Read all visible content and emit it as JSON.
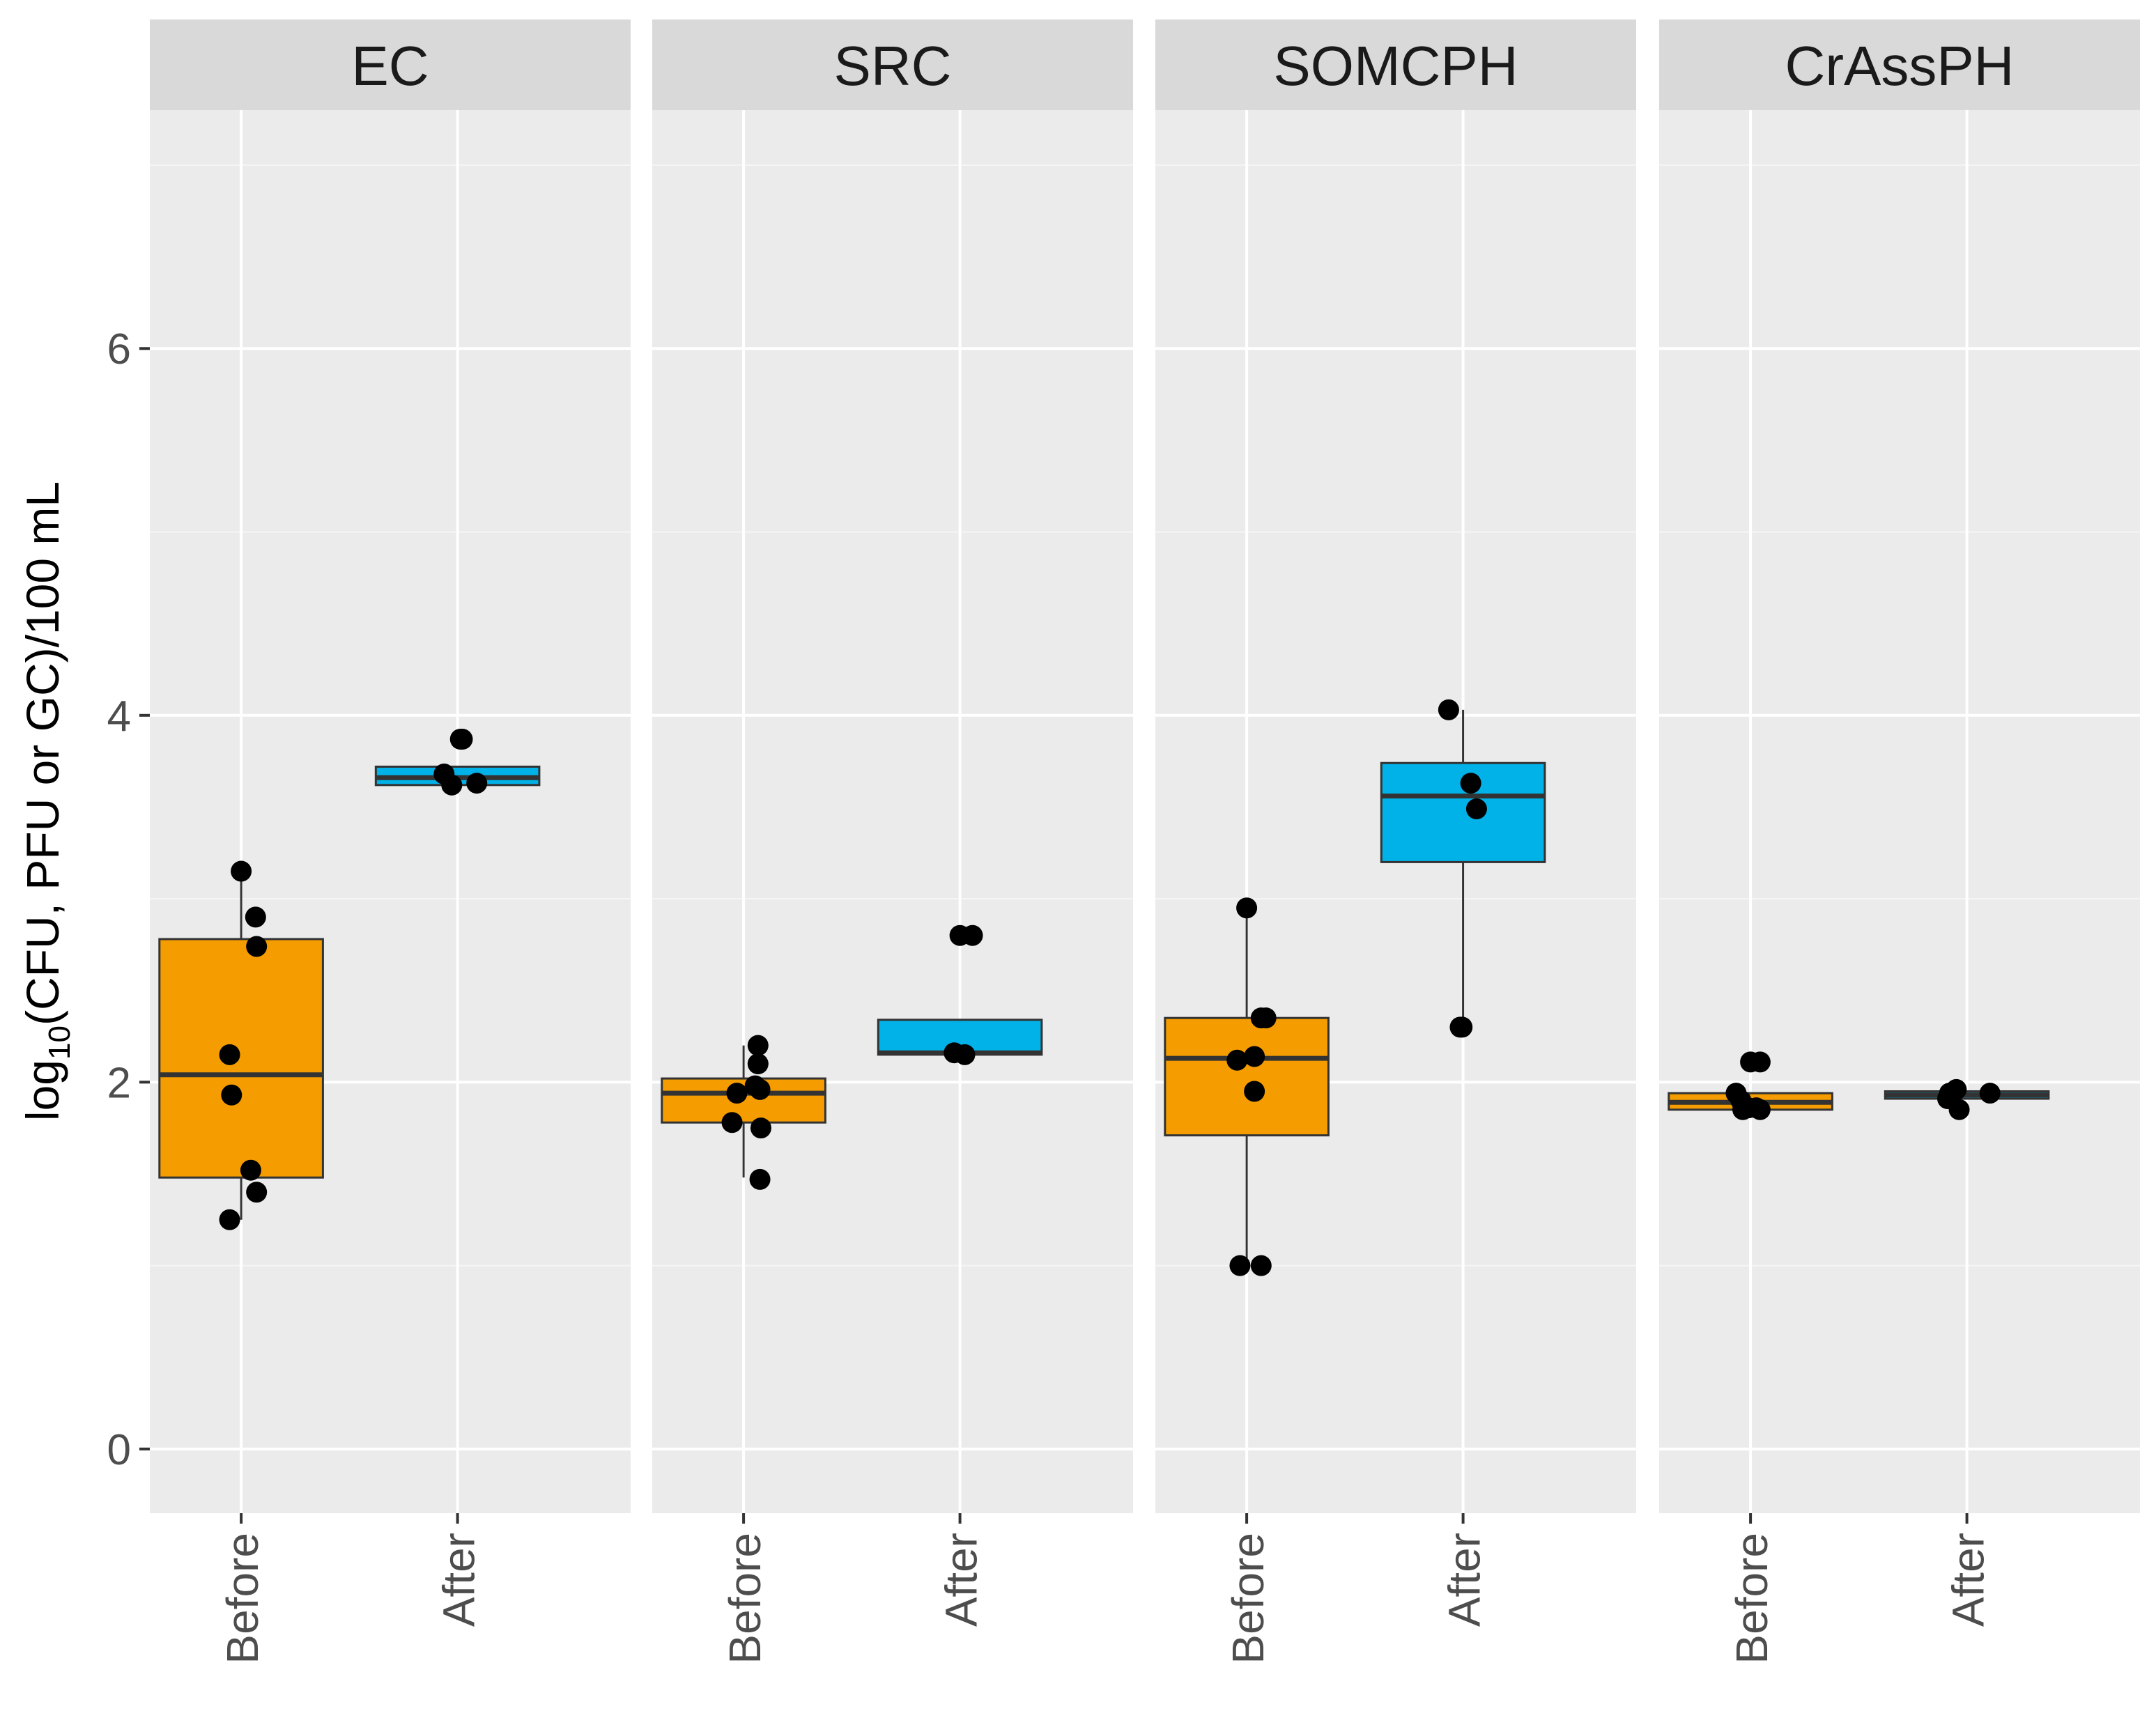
{
  "chart_data": {
    "type": "boxplot",
    "ylabel_parts": [
      "log",
      "10",
      "(CFU, PFU or GC)/100 mL"
    ],
    "ylim": [
      -0.35,
      7.3
    ],
    "yticks": [
      0,
      2,
      4,
      6
    ],
    "ytick_labels": [
      "0",
      "2",
      "4",
      "6"
    ],
    "categories": [
      "Before",
      "After"
    ],
    "colors": {
      "Before": "#f59d00",
      "After": "#00b2e8"
    },
    "panels": [
      {
        "title": "EC",
        "groups": [
          {
            "label": "Before",
            "whisker_low": 1.25,
            "q1": 1.48,
            "median": 2.04,
            "q3": 2.78,
            "whisker_high": 3.15,
            "points": [
              [
                0.0,
                3.15
              ],
              [
                0.15,
                2.9
              ],
              [
                0.16,
                2.74
              ],
              [
                -0.12,
                2.15
              ],
              [
                -0.1,
                1.93
              ],
              [
                0.1,
                1.52
              ],
              [
                0.16,
                1.4
              ],
              [
                -0.12,
                1.25
              ]
            ]
          },
          {
            "label": "After",
            "whisker_low": 3.62,
            "q1": 3.62,
            "median": 3.66,
            "q3": 3.72,
            "whisker_high": 3.72,
            "points": [
              [
                0.03,
                3.87
              ],
              [
                0.05,
                3.87
              ],
              [
                -0.14,
                3.68
              ],
              [
                -0.06,
                3.62
              ],
              [
                0.2,
                3.63
              ]
            ]
          }
        ]
      },
      {
        "title": "SRC",
        "groups": [
          {
            "label": "Before",
            "whisker_low": 1.48,
            "q1": 1.78,
            "median": 1.94,
            "q3": 2.02,
            "whisker_high": 2.2,
            "points": [
              [
                0.15,
                2.2
              ],
              [
                0.15,
                2.1
              ],
              [
                0.12,
                1.98
              ],
              [
                0.17,
                1.96
              ],
              [
                -0.07,
                1.94
              ],
              [
                -0.12,
                1.78
              ],
              [
                0.18,
                1.75
              ],
              [
                0.17,
                1.47
              ]
            ]
          },
          {
            "label": "After",
            "whisker_low": 2.15,
            "q1": 2.15,
            "median": 2.16,
            "q3": 2.34,
            "whisker_high": 2.34,
            "points": [
              [
                0.0,
                2.8
              ],
              [
                0.13,
                2.8
              ],
              [
                -0.06,
                2.16
              ],
              [
                0.05,
                2.15
              ]
            ]
          }
        ]
      },
      {
        "title": "SOMCPH",
        "groups": [
          {
            "label": "Before",
            "whisker_low": 1.0,
            "q1": 1.71,
            "median": 2.13,
            "q3": 2.35,
            "whisker_high": 2.95,
            "points": [
              [
                0.0,
                2.95
              ],
              [
                0.15,
                2.35
              ],
              [
                0.2,
                2.35
              ],
              [
                -0.1,
                2.12
              ],
              [
                0.08,
                2.14
              ],
              [
                0.08,
                1.95
              ],
              [
                -0.07,
                1.0
              ],
              [
                0.15,
                1.0
              ]
            ]
          },
          {
            "label": "After",
            "whisker_low": 2.3,
            "q1": 3.2,
            "median": 3.56,
            "q3": 3.74,
            "whisker_high": 4.03,
            "points": [
              [
                -0.15,
                4.03
              ],
              [
                0.08,
                3.63
              ],
              [
                0.14,
                3.49
              ],
              [
                -0.03,
                2.3
              ],
              [
                -0.01,
                2.3
              ]
            ]
          }
        ]
      },
      {
        "title": "CrAssPH",
        "groups": [
          {
            "label": "Before",
            "whisker_low": 1.85,
            "q1": 1.85,
            "median": 1.89,
            "q3": 1.94,
            "whisker_high": 1.94,
            "points": [
              [
                0.0,
                2.11
              ],
              [
                0.1,
                2.11
              ],
              [
                -0.15,
                1.94
              ],
              [
                -0.1,
                1.9
              ],
              [
                -0.02,
                1.86
              ],
              [
                0.06,
                1.86
              ],
              [
                0.1,
                1.85
              ],
              [
                -0.08,
                1.85
              ]
            ]
          },
          {
            "label": "After",
            "whisker_low": 1.91,
            "q1": 1.91,
            "median": 1.93,
            "q3": 1.95,
            "whisker_high": 1.95,
            "points": [
              [
                -0.18,
                1.94
              ],
              [
                -0.2,
                1.91
              ],
              [
                -0.11,
                1.96
              ],
              [
                -0.08,
                1.85
              ],
              [
                0.24,
                1.94
              ]
            ]
          }
        ]
      }
    ]
  }
}
